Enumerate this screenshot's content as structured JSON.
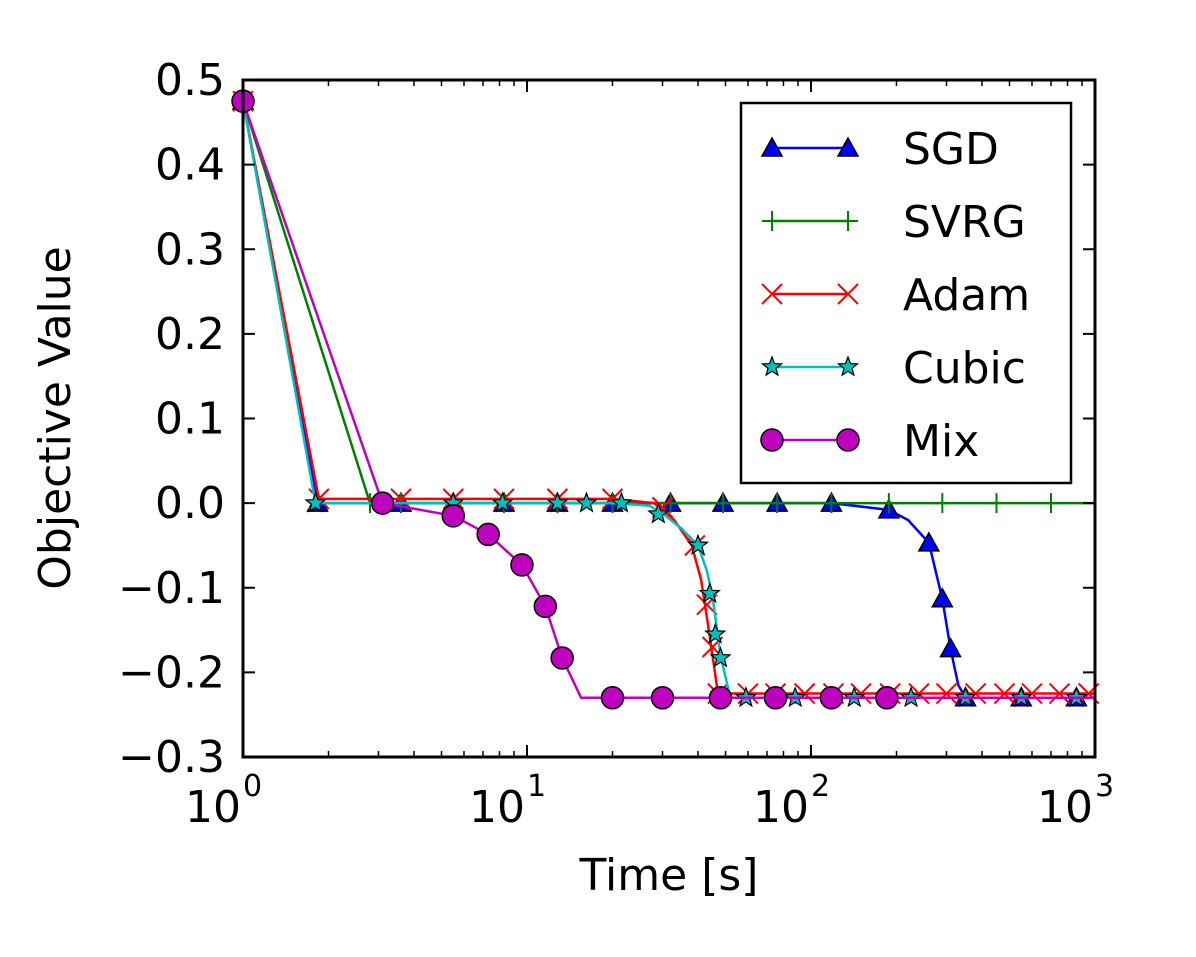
{
  "chart_data": {
    "type": "line",
    "xlabel": "Time [s]",
    "ylabel": "Objective Value",
    "x_scale": "log",
    "xlim": [
      1,
      1000
    ],
    "ylim": [
      -0.3,
      0.5
    ],
    "x_ticks": [
      {
        "value": 1,
        "base": "10",
        "exp": "0"
      },
      {
        "value": 10,
        "base": "10",
        "exp": "1"
      },
      {
        "value": 100,
        "base": "10",
        "exp": "2"
      },
      {
        "value": 1000,
        "base": "10",
        "exp": "3"
      }
    ],
    "y_ticks": [
      {
        "value": 0.5,
        "label": "0.5"
      },
      {
        "value": 0.4,
        "label": "0.4"
      },
      {
        "value": 0.3,
        "label": "0.3"
      },
      {
        "value": 0.2,
        "label": "0.2"
      },
      {
        "value": 0.1,
        "label": "0.1"
      },
      {
        "value": 0.0,
        "label": "0.0"
      },
      {
        "value": -0.1,
        "label": "−0.1"
      },
      {
        "value": -0.2,
        "label": "−0.2"
      },
      {
        "value": -0.3,
        "label": "−0.3"
      }
    ],
    "grid": false,
    "legend_position": "top-right",
    "series": [
      {
        "name": "SGD",
        "color": "#0000ff",
        "marker": "triangle",
        "x": [
          1.0,
          1.83,
          2.0,
          3.6,
          5.5,
          8.3,
          12.8,
          20,
          32,
          49,
          76,
          118,
          188,
          220,
          260,
          290,
          310,
          330,
          350,
          550,
          860
        ],
        "y": [
          0.475,
          0.0,
          0.0,
          0.0,
          0.0,
          0.0,
          0.0,
          0.0,
          0.0,
          0.0,
          0.0,
          0.0,
          -0.008,
          -0.02,
          -0.047,
          -0.113,
          -0.172,
          -0.215,
          -0.23,
          -0.23,
          -0.23
        ],
        "marker_x": [
          1.0,
          1.83,
          3.6,
          5.5,
          8.3,
          12.8,
          20,
          32,
          49,
          76,
          118,
          188,
          260,
          290,
          310,
          350,
          550,
          860
        ],
        "marker_y": [
          0.475,
          0.0,
          0.0,
          0.0,
          0.0,
          0.0,
          0.0,
          0.0,
          0.0,
          0.0,
          0.0,
          -0.008,
          -0.047,
          -0.113,
          -0.172,
          -0.23,
          -0.23,
          -0.23
        ]
      },
      {
        "name": "SVRG",
        "color": "#008000",
        "marker": "plus",
        "x": [
          1.0,
          2.8,
          1000
        ],
        "y": [
          0.475,
          0.0,
          0.0
        ],
        "marker_x": [
          1.0,
          2.8,
          3.6,
          5.5,
          8.3,
          12.8,
          20,
          32,
          49,
          76,
          118,
          188,
          290,
          450,
          700
        ],
        "marker_y": [
          0.475,
          0.0,
          0.0,
          0.0,
          0.0,
          0.0,
          0.0,
          0.0,
          0.0,
          0.0,
          0.0,
          0.0,
          0.0,
          0.0,
          0.0
        ]
      },
      {
        "name": "Adam",
        "color": "#ff0000",
        "marker": "x",
        "x": [
          1.0,
          1.85,
          3.0,
          10,
          20,
          28,
          33,
          38,
          41,
          43,
          45,
          47,
          50,
          1000
        ],
        "y": [
          0.475,
          0.005,
          0.005,
          0.005,
          0.005,
          0.0,
          -0.02,
          -0.05,
          -0.09,
          -0.135,
          -0.18,
          -0.225,
          -0.225,
          -0.225
        ],
        "marker_x": [
          1.0,
          1.85,
          3.6,
          5.5,
          8.3,
          12.8,
          20,
          30,
          39,
          43,
          45,
          47,
          60,
          75,
          95,
          120,
          150,
          190,
          240,
          300,
          380,
          480,
          600,
          750,
          950
        ],
        "marker_y": [
          0.475,
          0.005,
          0.005,
          0.005,
          0.005,
          0.005,
          0.005,
          -0.005,
          -0.05,
          -0.12,
          -0.17,
          -0.225,
          -0.225,
          -0.225,
          -0.225,
          -0.225,
          -0.225,
          -0.225,
          -0.225,
          -0.225,
          -0.225,
          -0.225,
          -0.225,
          -0.225,
          -0.225
        ]
      },
      {
        "name": "Cubic",
        "color": "#00bfbf",
        "marker": "star",
        "x": [
          1.0,
          1.8,
          5,
          10,
          20,
          27,
          30,
          35,
          40,
          43,
          45,
          48,
          52,
          1000
        ],
        "y": [
          0.475,
          0.0,
          0.0,
          0.0,
          0.0,
          -0.003,
          -0.012,
          -0.03,
          -0.05,
          -0.08,
          -0.11,
          -0.18,
          -0.23,
          -0.23
        ],
        "marker_x": [
          1.0,
          1.8,
          5.5,
          8.2,
          12.8,
          16.2,
          21.5,
          29,
          40,
          44,
          46,
          48,
          59,
          88,
          142,
          225,
          350,
          550,
          860
        ],
        "marker_y": [
          0.475,
          0.0,
          0.0,
          0.0,
          0.0,
          0.0,
          0.0,
          -0.013,
          -0.05,
          -0.107,
          -0.155,
          -0.183,
          -0.23,
          -0.23,
          -0.23,
          -0.23,
          -0.23,
          -0.23,
          -0.23
        ]
      },
      {
        "name": "Mix",
        "color": "#bf00bf",
        "marker": "circle",
        "x": [
          1.0,
          3.1,
          5.5,
          7.3,
          9.6,
          11.6,
          13.3,
          15.5,
          20,
          30,
          1000
        ],
        "y": [
          0.475,
          0.0,
          -0.015,
          -0.037,
          -0.073,
          -0.122,
          -0.183,
          -0.23,
          -0.23,
          -0.23,
          -0.23
        ],
        "marker_x": [
          1.0,
          3.1,
          5.5,
          7.3,
          9.6,
          11.6,
          13.3,
          20,
          30,
          48,
          75,
          118,
          185
        ],
        "marker_y": [
          0.475,
          0.0,
          -0.015,
          -0.037,
          -0.073,
          -0.122,
          -0.183,
          -0.23,
          -0.23,
          -0.23,
          -0.23,
          -0.23,
          -0.23
        ]
      }
    ]
  }
}
